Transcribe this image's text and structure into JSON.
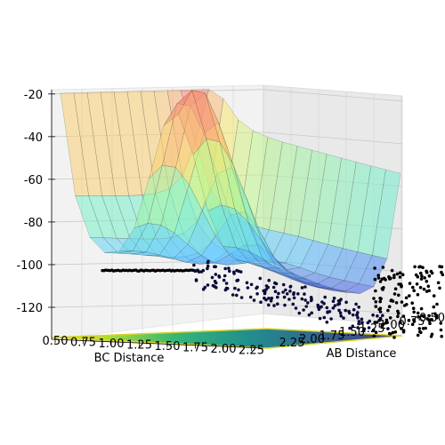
{
  "chart_data": {
    "type": "surface",
    "title": "",
    "xlabel": "BC Distance",
    "ylabel": "AB Distance",
    "zlabel": "",
    "x_ticks": [
      "0.50",
      "0.75",
      "1.00",
      "1.25",
      "1.50",
      "1.75",
      "2.00",
      "2.25"
    ],
    "y_ticks": [
      "2.25",
      "2.00",
      "1.75",
      "1.50",
      "1.25",
      "1.00",
      "0.75",
      "0.50"
    ],
    "z_ticks": [
      "-20",
      "-40",
      "-60",
      "-80",
      "-100",
      "-120"
    ],
    "x_range": [
      0.5,
      2.3
    ],
    "y_range": [
      0.5,
      2.3
    ],
    "z_range": [
      -135,
      -18
    ],
    "colormap": "jet-like (blue → cyan → green → yellow → orange → red)",
    "surface_alpha": "semi-transparent",
    "floor_contour_colormap": "viridis",
    "scatter_color": "#000000",
    "grid": true,
    "legend": "none"
  }
}
